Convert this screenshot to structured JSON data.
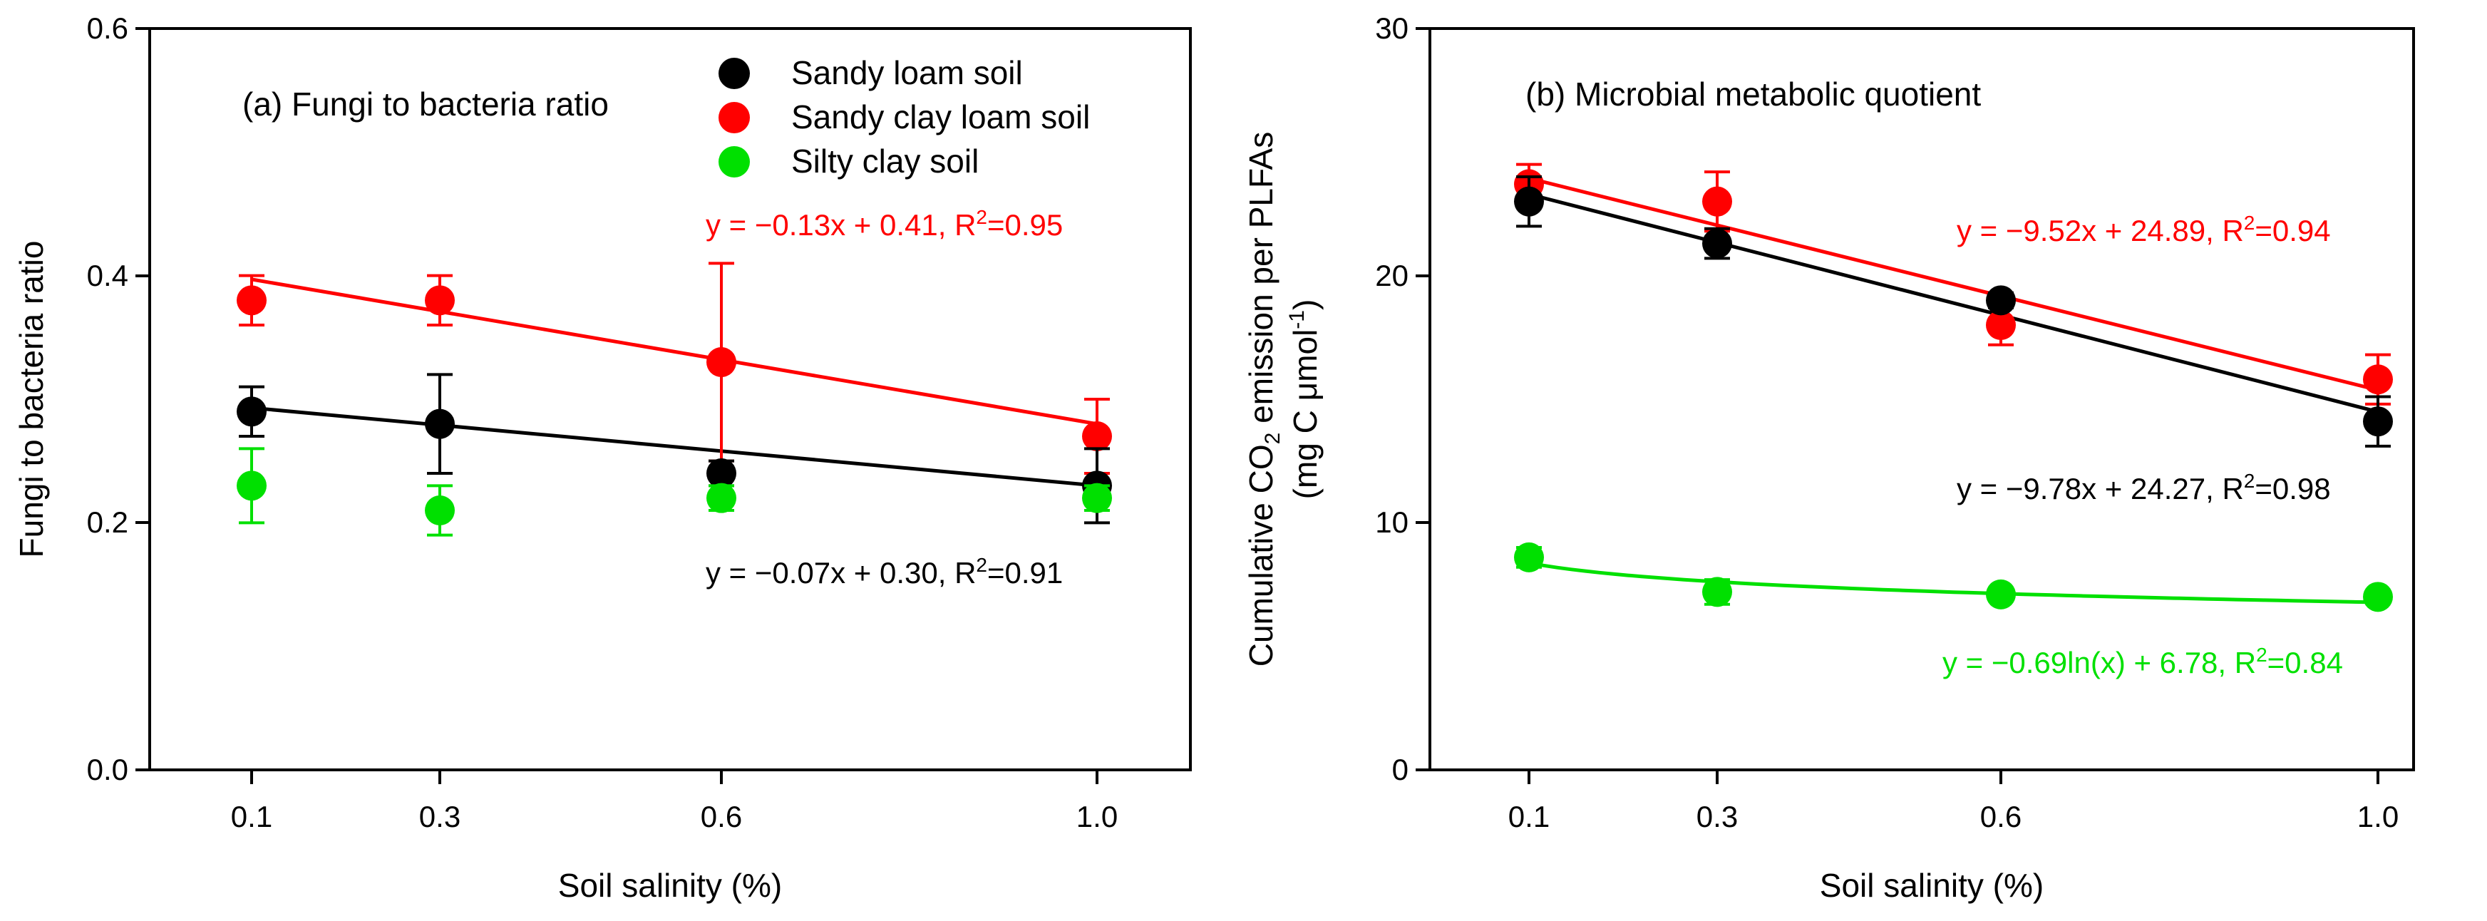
{
  "chart_data": [
    {
      "type": "scatter",
      "panel_label": "(a) Fungi to bacteria ratio",
      "xlabel": "Soil salinity (%)",
      "ylabel": "Fungi to bacteria ratio",
      "x_ticks": [
        "0.1",
        "0.3",
        "0.6",
        "1.0"
      ],
      "y_ticks": [
        "0.0",
        "0.2",
        "0.4",
        "0.6"
      ],
      "ylim": [
        0,
        0.6
      ],
      "series": [
        {
          "name": "Sandy loam soil",
          "color": "#000000",
          "x": [
            0.1,
            0.3,
            0.6,
            1.0
          ],
          "y": [
            0.29,
            0.28,
            0.24,
            0.23
          ],
          "err": [
            0.02,
            0.04,
            0.01,
            0.03
          ],
          "fit": {
            "type": "linear",
            "slope": -0.07,
            "intercept": 0.3
          },
          "equation": "y = −0.07x + 0.30, R",
          "r2": "=0.91"
        },
        {
          "name": "Sandy clay loam soil",
          "color": "#ff0000",
          "x": [
            0.1,
            0.3,
            0.6,
            1.0
          ],
          "y": [
            0.38,
            0.38,
            0.33,
            0.27
          ],
          "err": [
            0.02,
            0.02,
            0.08,
            0.03
          ],
          "fit": {
            "type": "linear",
            "slope": -0.13,
            "intercept": 0.41
          },
          "equation": "y = −0.13x + 0.41, R",
          "r2": "=0.95"
        },
        {
          "name": "Silty clay soil",
          "color": "#00e000",
          "x": [
            0.1,
            0.3,
            0.6,
            1.0
          ],
          "y": [
            0.23,
            0.21,
            0.22,
            0.22
          ],
          "err": [
            0.03,
            0.02,
            0.01,
            0.01
          ]
        }
      ]
    },
    {
      "type": "scatter",
      "panel_label": "(b) Microbial metabolic quotient",
      "xlabel": "Soil salinity (%)",
      "ylabel_line1": "Cumulative CO",
      "ylabel_sub": "2",
      "ylabel_rest": " emission per PLFAs",
      "ylabel_line2": "(mg C μmol",
      "ylabel_sup": "-1",
      "ylabel_close": ")",
      "x_ticks": [
        "0.1",
        "0.3",
        "0.6",
        "1.0"
      ],
      "y_ticks": [
        "0",
        "10",
        "20",
        "30"
      ],
      "ylim": [
        0,
        30
      ],
      "series": [
        {
          "name": "Sandy loam soil",
          "color": "#000000",
          "x": [
            0.1,
            0.3,
            0.6,
            1.0
          ],
          "y": [
            23.0,
            21.3,
            19.0,
            14.1
          ],
          "err": [
            1.0,
            0.6,
            0.3,
            1.0
          ],
          "fit": {
            "type": "linear",
            "slope": -9.78,
            "intercept": 24.27
          },
          "equation": "y = −9.78x + 24.27, R",
          "r2": "=0.98"
        },
        {
          "name": "Sandy clay loam soil",
          "color": "#ff0000",
          "x": [
            0.1,
            0.3,
            0.6,
            1.0
          ],
          "y": [
            23.7,
            23.0,
            18.0,
            15.8
          ],
          "err": [
            0.8,
            1.2,
            0.8,
            1.0
          ],
          "fit": {
            "type": "linear",
            "slope": -9.52,
            "intercept": 24.89
          },
          "equation": "y = −9.52x + 24.89, R",
          "r2": "=0.94"
        },
        {
          "name": "Silty clay soil",
          "color": "#00e000",
          "x": [
            0.1,
            0.3,
            0.6,
            1.0
          ],
          "y": [
            8.6,
            7.2,
            7.1,
            7.0
          ],
          "err": [
            0.4,
            0.5,
            0.2,
            0.2
          ],
          "fit": {
            "type": "log",
            "slope": -0.69,
            "intercept": 6.78
          },
          "equation": "y = −0.69ln(x) + 6.78, R",
          "r2": "=0.84"
        }
      ]
    }
  ]
}
